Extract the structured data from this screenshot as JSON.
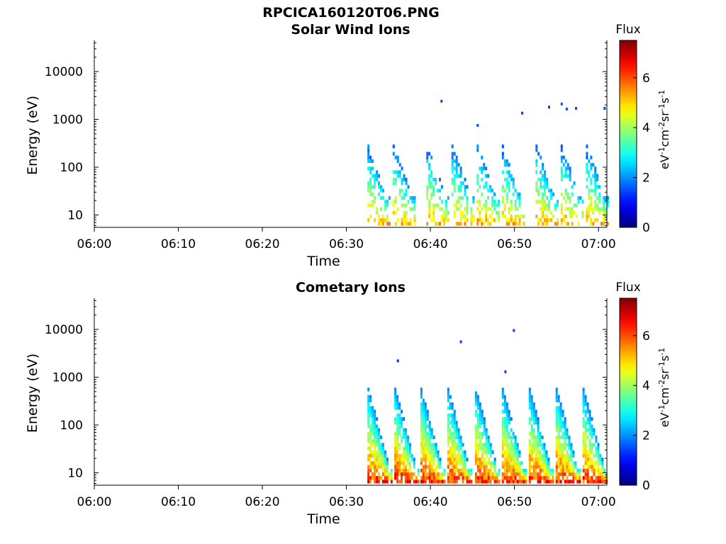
{
  "figure": {
    "title": "RPCICA160120T06.PNG"
  },
  "chart_data": [
    {
      "type": "heatmap",
      "title": "Solar Wind Ions",
      "xlabel": "Time",
      "ylabel": "Energy (eV)",
      "x_ticks": [
        "06:00",
        "06:10",
        "06:20",
        "06:30",
        "06:40",
        "06:50",
        "07:00"
      ],
      "xlim_minutes": [
        0,
        61
      ],
      "y_scale": "log",
      "y_ticks": [
        10,
        100,
        1000,
        10000
      ],
      "y_tick_labels": [
        "10",
        "100",
        "1000",
        "10000"
      ],
      "ylim": [
        5.5,
        45000
      ],
      "colorbar": {
        "title": "Flux",
        "label": "eV-1cm-2sr-1s-1",
        "ticks": [
          0,
          2,
          4,
          6
        ],
        "range": [
          0,
          7.5
        ],
        "colormap": "jet"
      },
      "data_start_minute": 32.5,
      "sweep_start_minutes": [
        32.5,
        35.5,
        39.5,
        42.5,
        45.5,
        48.5,
        52.5,
        55.5,
        58.5
      ],
      "sweeps": {
        "top_energy_eV": 300,
        "low_energy_eV": 12,
        "peak_flux": 5.8,
        "duration_minutes": 2.6
      },
      "isolated_points": [
        {
          "minute": 41.2,
          "energy_eV": 2400,
          "flux": 1.5
        },
        {
          "minute": 45.5,
          "energy_eV": 750,
          "flux": 1.5
        },
        {
          "minute": 50.8,
          "energy_eV": 1350,
          "flux": 1.4
        },
        {
          "minute": 54.0,
          "energy_eV": 1800,
          "flux": 1.4
        },
        {
          "minute": 55.5,
          "energy_eV": 2100,
          "flux": 1.6
        },
        {
          "minute": 56.1,
          "energy_eV": 1650,
          "flux": 1.5
        },
        {
          "minute": 57.2,
          "energy_eV": 1700,
          "flux": 1.5
        },
        {
          "minute": 60.6,
          "energy_eV": 1700,
          "flux": 1.4
        }
      ]
    },
    {
      "type": "heatmap",
      "title": "Cometary Ions",
      "xlabel": "Time",
      "ylabel": "Energy (eV)",
      "x_ticks": [
        "06:00",
        "06:10",
        "06:20",
        "06:30",
        "06:40",
        "06:50",
        "07:00"
      ],
      "xlim_minutes": [
        0,
        61
      ],
      "y_scale": "log",
      "y_ticks": [
        10,
        100,
        1000,
        10000
      ],
      "y_tick_labels": [
        "10",
        "100",
        "1000",
        "10000"
      ],
      "ylim": [
        5.5,
        45000
      ],
      "colorbar": {
        "title": "Flux",
        "label": "eV-1cm-2sr-1s-1",
        "ticks": [
          0,
          2,
          4,
          6
        ],
        "range": [
          0,
          7.5
        ],
        "colormap": "jet"
      },
      "data_start_minute": 32.5,
      "sweep_start_minutes": [
        32.5,
        35.7,
        38.8,
        42.0,
        45.3,
        48.5,
        51.7,
        54.9,
        58.1
      ],
      "sweeps": {
        "top_energy_eV": 650,
        "low_energy_eV": 6,
        "peak_flux": 7.0,
        "duration_minutes": 3.0
      },
      "isolated_points": [
        {
          "minute": 36.0,
          "energy_eV": 2200,
          "flux": 1.3
        },
        {
          "minute": 43.5,
          "energy_eV": 5500,
          "flux": 1.4
        },
        {
          "minute": 49.8,
          "energy_eV": 9500,
          "flux": 1.4
        },
        {
          "minute": 48.8,
          "energy_eV": 1300,
          "flux": 1.4
        }
      ]
    }
  ]
}
